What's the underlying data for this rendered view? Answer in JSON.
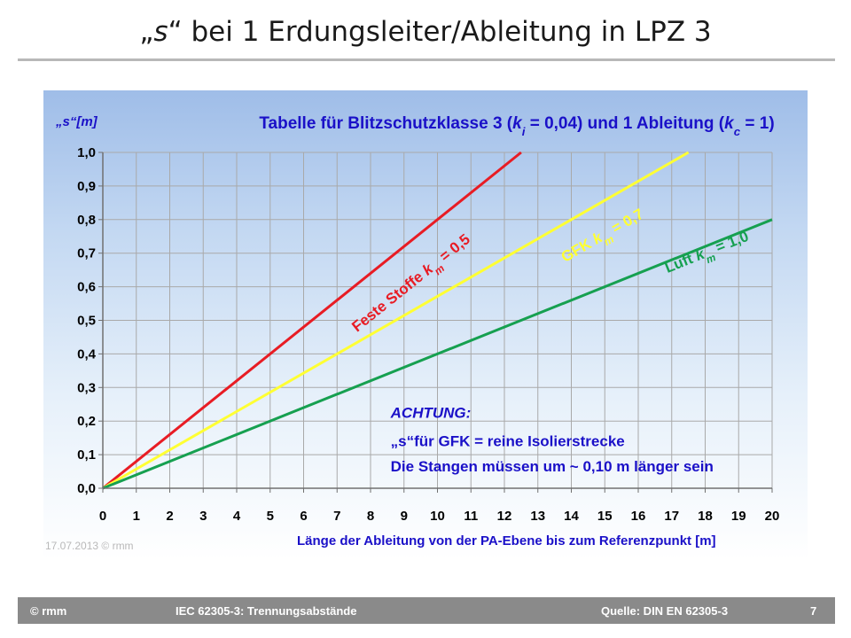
{
  "slide": {
    "title_quote_open": "„",
    "title_var": "s",
    "title_quote_close": "“",
    "title_rest": " bei 1 Erdungsleiter/Ableitung in LPZ 3"
  },
  "footer": {
    "left": "© rmm",
    "center": "IEC 62305-3: Trennungsabstände",
    "source": "Quelle: DIN EN 62305-3",
    "page": "7"
  },
  "chart_data": {
    "type": "line",
    "title_parts": [
      "Tabelle für Blitzschutzklasse 3 (",
      "k",
      "i",
      " = 0,04) und 1 Ableitung (",
      "k",
      "c",
      " = 1)"
    ],
    "ylabel": "„s“[m]",
    "xlabel": "Länge der Ableitung von der PA-Ebene bis zum Referenzpunkt [m]",
    "xlim": [
      0,
      20
    ],
    "ylim": [
      0,
      1.0
    ],
    "xticks": [
      0,
      1,
      2,
      3,
      4,
      5,
      6,
      7,
      8,
      9,
      10,
      11,
      12,
      13,
      14,
      15,
      16,
      17,
      18,
      19,
      20
    ],
    "yticks": [
      "0,0",
      "0,1",
      "0,2",
      "0,3",
      "0,4",
      "0,5",
      "0,6",
      "0,7",
      "0,8",
      "0,9",
      "1,0"
    ],
    "grid": true,
    "series": [
      {
        "label_parts": [
          "Feste Stoffe k",
          "m",
          " = 0,5"
        ],
        "color": "#e81c24",
        "x": [
          0,
          12.5
        ],
        "y": [
          0,
          1.0
        ]
      },
      {
        "label_parts": [
          "GFK k",
          "m",
          " = 0,7"
        ],
        "color": "#ffff33",
        "x": [
          0,
          17.5
        ],
        "y": [
          0,
          1.0
        ]
      },
      {
        "label_parts": [
          "Luft k",
          "m",
          " = 1,0"
        ],
        "color": "#16a050",
        "x": [
          0,
          20
        ],
        "y": [
          0,
          0.8
        ]
      }
    ],
    "annotation": {
      "line1": "ACHTUNG:",
      "line2": "„s“für GFK = reine Isolierstrecke",
      "line3": "Die Stangen müssen um ~ 0,10 m länger sein",
      "color": "#1a10c8"
    },
    "watermark": "17.07.2013 © rmm"
  }
}
